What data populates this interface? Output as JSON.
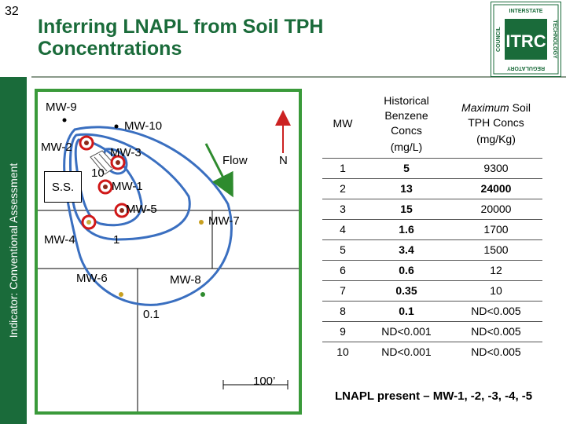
{
  "slide_number": "32",
  "sidebar_text": "Indicator: Conventional Assessment",
  "title_line1": "Inferring LNAPL from Soil TPH",
  "title_line2": "Concentrations",
  "logo": {
    "top_text": "INTERSTATE",
    "left_text": "COUNCIL",
    "right_text": "TECHNOLOGY",
    "bottom_text": "REGULATORY",
    "center_text": "ITRC"
  },
  "map": {
    "wells": {
      "mw9": "MW-9",
      "mw10": "MW-10",
      "mw2": "MW-2",
      "mw3": "MW-3",
      "mw1": "MW-1",
      "mw5": "MW-5",
      "mw4": "MW-4",
      "mw7": "MW-7",
      "mw6": "MW-6",
      "mw8": "MW-8"
    },
    "ss_label": "S.S.",
    "contour_10": "10",
    "contour_1": "1",
    "contour_01": "0.1",
    "flow_label": "Flow",
    "north_label": "N",
    "scale_label": "100’"
  },
  "table": {
    "header_mw": "MW",
    "header_benzene": "Historical Benzene Concs",
    "header_benzene_units": "(mg/L)",
    "header_tph_italic": "Maximum",
    "header_tph_rest": " Soil TPH Concs",
    "header_tph_units": "(mg/Kg)",
    "rows": [
      {
        "mw": "1",
        "benzene": "5",
        "tph": "9300"
      },
      {
        "mw": "2",
        "benzene": "13",
        "tph": "24000"
      },
      {
        "mw": "3",
        "benzene": "15",
        "tph": "20000"
      },
      {
        "mw": "4",
        "benzene": "1.6",
        "tph": "1700"
      },
      {
        "mw": "5",
        "benzene": "3.4",
        "tph": "1500"
      },
      {
        "mw": "6",
        "benzene": "0.6",
        "tph": "12"
      },
      {
        "mw": "7",
        "benzene": "0.35",
        "tph": "10"
      },
      {
        "mw": "8",
        "benzene": "0.1",
        "tph": "ND<0.005"
      },
      {
        "mw": "9",
        "benzene": "ND<0.001",
        "tph": "ND<0.005"
      },
      {
        "mw": "10",
        "benzene": "ND<0.001",
        "tph": "ND<0.005"
      }
    ]
  },
  "lnapl_note": "LNAPL present – MW-1, -2, -3, -4, -5",
  "colors": {
    "brand_green": "#1a6b3a",
    "frame_green": "#3a9a3a",
    "contour_blue": "#3a6fc0",
    "lnapl_red": "#d01818",
    "arrow_green": "#2e8b2e"
  }
}
